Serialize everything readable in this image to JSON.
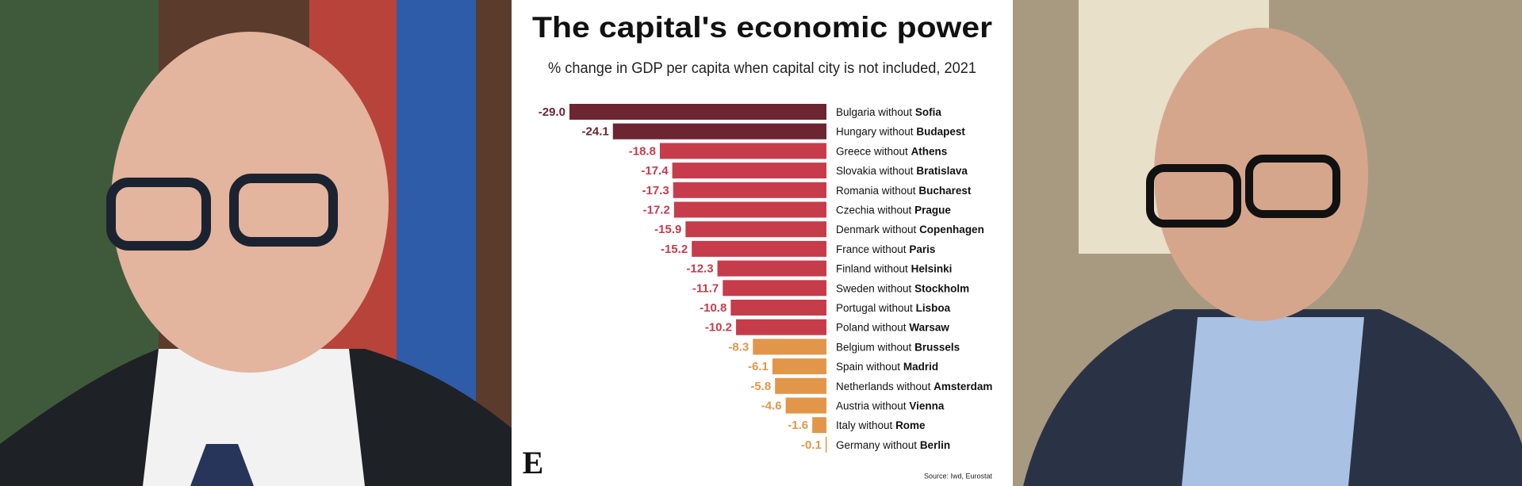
{
  "chart_data": {
    "type": "bar",
    "orientation": "horizontal",
    "title": "The capital's economic power",
    "subtitle": "% change in GDP per capita when capital city is not included, 2021",
    "source": "Source: Iwd, Eurostat",
    "logo": "E",
    "categories": [
      [
        "Bulgaria without",
        "Sofia"
      ],
      [
        "Hungary without",
        "Budapest"
      ],
      [
        "Greece without",
        "Athens"
      ],
      [
        "Slovakia without",
        "Bratislava"
      ],
      [
        "Romania without",
        "Bucharest"
      ],
      [
        "Czechia without",
        "Prague"
      ],
      [
        "Denmark without",
        "Copenhagen"
      ],
      [
        "France without",
        "Paris"
      ],
      [
        "Finland without",
        "Helsinki"
      ],
      [
        "Sweden without",
        "Stockholm"
      ],
      [
        "Portugal without",
        "Lisboa"
      ],
      [
        "Poland without",
        "Warsaw"
      ],
      [
        "Belgium without",
        "Brussels"
      ],
      [
        "Spain without",
        "Madrid"
      ],
      [
        "Netherlands without",
        "Amsterdam"
      ],
      [
        "Austria without",
        "Vienna"
      ],
      [
        "Italy without",
        "Rome"
      ],
      [
        "Germany without",
        "Berlin"
      ]
    ],
    "values": [
      -29.0,
      -24.1,
      -18.8,
      -17.4,
      -17.3,
      -17.2,
      -15.9,
      -15.2,
      -12.3,
      -11.7,
      -10.8,
      -10.2,
      -8.3,
      -6.1,
      -5.8,
      -4.6,
      -1.6,
      -0.1
    ],
    "value_labels": [
      "-29.0",
      "-24.1",
      "-18.8",
      "-17.4",
      "-17.3",
      "-17.2",
      "-15.9",
      "-15.2",
      "-12.3",
      "-11.7",
      "-10.8",
      "-10.2",
      "-8.3",
      "-6.1",
      "-5.8",
      "-4.6",
      "-1.6",
      "-0.1"
    ],
    "colors": [
      "#6b2631",
      "#6b2631",
      "#c63c4b",
      "#c63c4b",
      "#c63c4b",
      "#c63c4b",
      "#c63c4b",
      "#c63c4b",
      "#c63c4b",
      "#c63c4b",
      "#c63c4b",
      "#c63c4b",
      "#e2964a",
      "#e2964a",
      "#e2964a",
      "#e2964a",
      "#e2964a",
      "#e2964a"
    ]
  }
}
